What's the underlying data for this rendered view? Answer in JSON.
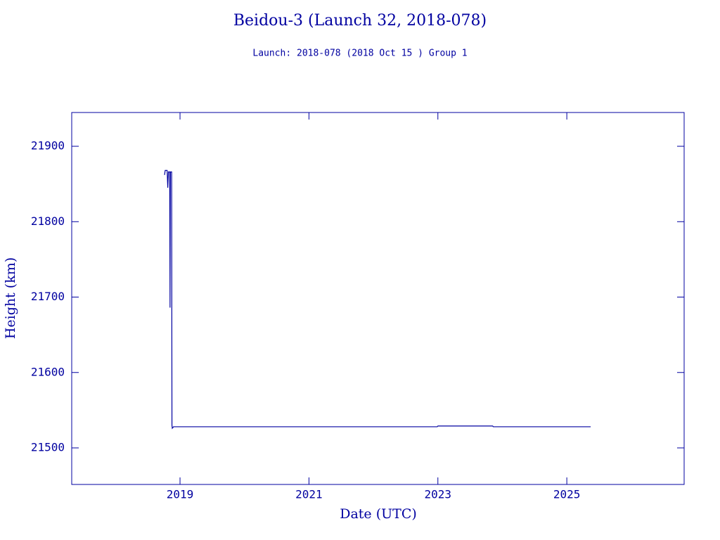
{
  "chart_data": {
    "type": "line",
    "title": "Beidou-3 (Launch 32, 2018-078)",
    "subtitle": "Launch: 2018-078  (2018 Oct 15 )  Group 1",
    "x_label": "Date (UTC)",
    "y_label": "Height (km)",
    "x": [
      2018.76,
      2018.77,
      2018.8,
      2018.81,
      2018.82,
      2018.84,
      2018.845,
      2018.85,
      2018.87,
      2018.875,
      2018.88,
      2018.9,
      2022.99,
      2023.0,
      2023.85,
      2023.86,
      2025.37
    ],
    "values": [
      21862,
      21868,
      21868,
      21845,
      21866,
      21866,
      21686,
      21866,
      21866,
      21530,
      21526,
      21528,
      21528,
      21529,
      21529,
      21528,
      21528
    ],
    "color": "#0000a0",
    "xlim": [
      2017.32,
      2026.82
    ],
    "xticks": [
      2019,
      2021,
      2023,
      2025
    ],
    "ylim": [
      21451.5,
      21944.8
    ],
    "yticks": [
      21500,
      21600,
      21700,
      21800,
      21900
    ]
  }
}
